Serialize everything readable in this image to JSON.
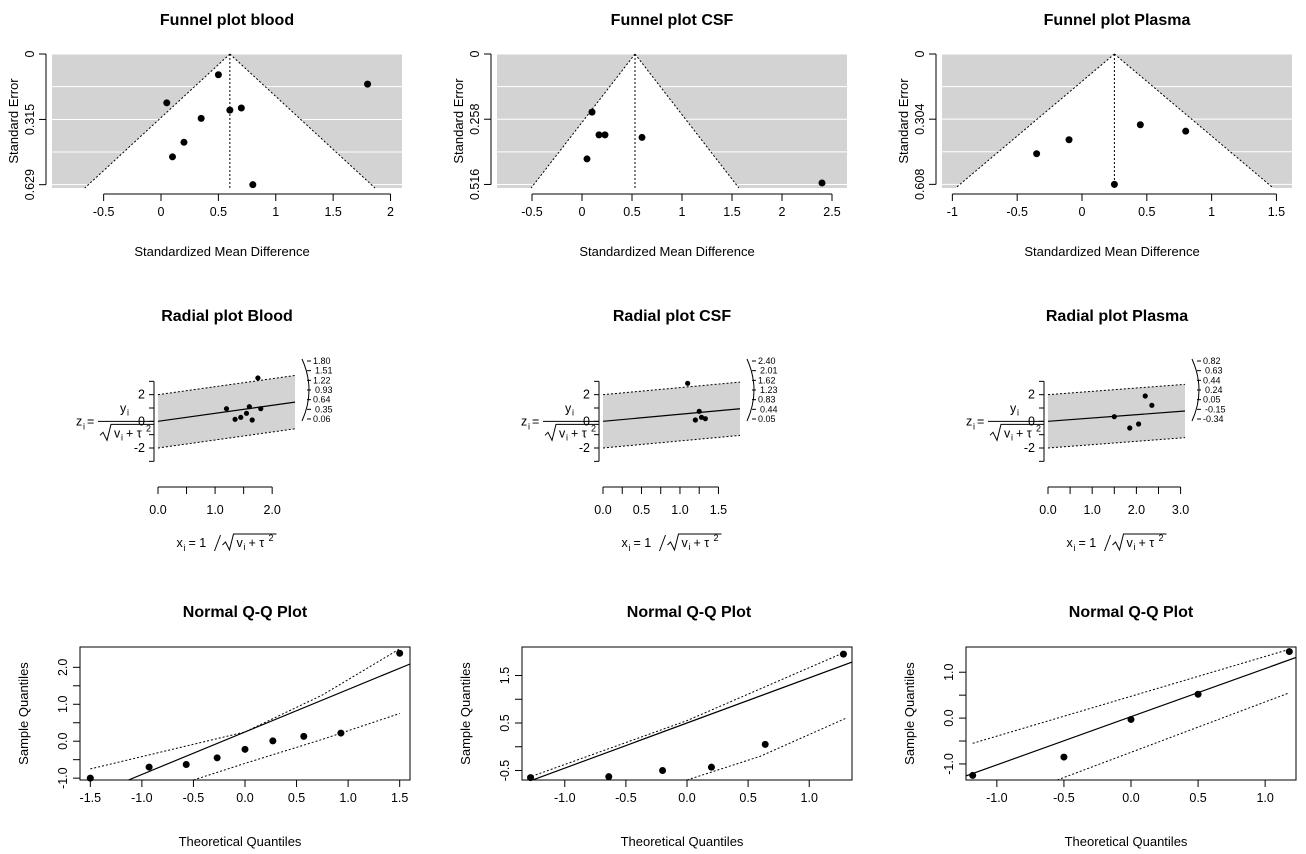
{
  "chart_data": [
    {
      "id": "funnel-blood",
      "type": "scatter",
      "kind": "funnel",
      "title": "Funnel plot blood",
      "xlabel": "Standardized Mean Difference",
      "ylabel": "Standard Error",
      "xlim": [
        -0.95,
        2.1
      ],
      "ylim": [
        0.645,
        0
      ],
      "xticks": [
        -0.5,
        0,
        0.5,
        1,
        1.5,
        2
      ],
      "xtick_labels": [
        "-0.5",
        "0",
        "0.5",
        "1",
        "1.5",
        "2"
      ],
      "yticks": [
        0,
        0.315,
        0.629
      ],
      "ytick_labels": [
        "0",
        "0.315",
        "0.629"
      ],
      "gridlines": [
        0,
        0.157,
        0.315,
        0.472,
        0.629
      ],
      "estimate": 0.6,
      "points": [
        {
          "x": 0.05,
          "y": 0.235
        },
        {
          "x": 0.5,
          "y": 0.1
        },
        {
          "x": 0.6,
          "y": 0.27
        },
        {
          "x": 0.7,
          "y": 0.26
        },
        {
          "x": 0.35,
          "y": 0.31
        },
        {
          "x": 0.2,
          "y": 0.425
        },
        {
          "x": 0.1,
          "y": 0.495
        },
        {
          "x": 0.8,
          "y": 0.629
        },
        {
          "x": 1.8,
          "y": 0.145
        }
      ]
    },
    {
      "id": "funnel-csf",
      "type": "scatter",
      "kind": "funnel",
      "title": "Funnel plot CSF",
      "xlabel": "Standardized Mean Difference",
      "ylabel": "Standard Error",
      "xlim": [
        -0.85,
        2.65
      ],
      "ylim": [
        0.53,
        0
      ],
      "xticks": [
        -0.5,
        0,
        0.5,
        1,
        1.5,
        2,
        2.5
      ],
      "xtick_labels": [
        "-0.5",
        "0",
        "0.5",
        "1",
        "1.5",
        "2",
        "2.5"
      ],
      "yticks": [
        0,
        0.258,
        0.516
      ],
      "ytick_labels": [
        "0",
        "0.258",
        "0.516"
      ],
      "gridlines": [
        0,
        0.129,
        0.258,
        0.387,
        0.516
      ],
      "estimate": 0.53,
      "points": [
        {
          "x": 0.1,
          "y": 0.23
        },
        {
          "x": 0.17,
          "y": 0.32
        },
        {
          "x": 0.23,
          "y": 0.32
        },
        {
          "x": 0.6,
          "y": 0.33
        },
        {
          "x": 0.05,
          "y": 0.415
        },
        {
          "x": 2.4,
          "y": 0.51
        }
      ]
    },
    {
      "id": "funnel-plasma",
      "type": "scatter",
      "kind": "funnel",
      "title": "Funnel plot Plasma",
      "xlabel": "Standardized Mean Difference",
      "ylabel": "Standard Error",
      "xlim": [
        -1.08,
        1.62
      ],
      "ylim": [
        0.625,
        0
      ],
      "xticks": [
        -1,
        -0.5,
        0,
        0.5,
        1,
        1.5
      ],
      "xtick_labels": [
        "-1",
        "-0.5",
        "0",
        "0.5",
        "1",
        "1.5"
      ],
      "yticks": [
        0,
        0.304,
        0.608
      ],
      "ytick_labels": [
        "0",
        "0.304",
        "0.608"
      ],
      "gridlines": [
        0,
        0.152,
        0.304,
        0.456,
        0.608
      ],
      "estimate": 0.25,
      "points": [
        {
          "x": -0.35,
          "y": 0.465
        },
        {
          "x": -0.1,
          "y": 0.4
        },
        {
          "x": 0.45,
          "y": 0.33
        },
        {
          "x": 0.8,
          "y": 0.36
        },
        {
          "x": 0.25,
          "y": 0.608
        }
      ]
    },
    {
      "id": "radial-blood",
      "type": "scatter",
      "kind": "radial",
      "title": "Radial plot Blood",
      "xlim": [
        0,
        2.4
      ],
      "ylim": [
        -3.8,
        4
      ],
      "xticks": [
        0,
        0.5,
        1,
        1.5,
        2
      ],
      "xtick_labels": [
        "0.0",
        "",
        "1.0",
        "",
        "2.0"
      ],
      "yticks": [
        -2,
        0,
        2
      ],
      "ytick_labels": [
        "-2",
        "0",
        "2"
      ],
      "slope": 0.6,
      "arc_labels": [
        "1.80",
        "1.51",
        "1.22",
        "0.93",
        "0.64",
        "0.35",
        "0.06"
      ],
      "points": [
        {
          "x": 1.2,
          "y": 0.95
        },
        {
          "x": 1.35,
          "y": 0.15
        },
        {
          "x": 1.45,
          "y": 0.3
        },
        {
          "x": 1.55,
          "y": 0.6
        },
        {
          "x": 1.6,
          "y": 1.1
        },
        {
          "x": 1.65,
          "y": 0.1
        },
        {
          "x": 1.75,
          "y": 3.25
        },
        {
          "x": 1.8,
          "y": 0.95
        }
      ]
    },
    {
      "id": "radial-csf",
      "type": "scatter",
      "kind": "radial",
      "title": "Radial plot CSF",
      "xlim": [
        0,
        1.78
      ],
      "ylim": [
        -3.8,
        4
      ],
      "xticks": [
        0,
        0.25,
        0.5,
        0.75,
        1,
        1.25,
        1.5
      ],
      "xtick_labels": [
        "0.0",
        "",
        "0.5",
        "",
        "1.0",
        "",
        "1.5"
      ],
      "yticks": [
        -2,
        0,
        2
      ],
      "ytick_labels": [
        "-2",
        "0",
        "2"
      ],
      "slope": 0.53,
      "arc_labels": [
        "2.40",
        "2.01",
        "1.62",
        "1.23",
        "0.83",
        "0.44",
        "0.05"
      ],
      "points": [
        {
          "x": 1.1,
          "y": 2.85
        },
        {
          "x": 1.2,
          "y": 0.1
        },
        {
          "x": 1.25,
          "y": 0.75
        },
        {
          "x": 1.28,
          "y": 0.3
        },
        {
          "x": 1.33,
          "y": 0.2
        }
      ]
    },
    {
      "id": "radial-plasma",
      "type": "scatter",
      "kind": "radial",
      "title": "Radial plot Plasma",
      "xlim": [
        0,
        3.1
      ],
      "ylim": [
        -3.8,
        4
      ],
      "xticks": [
        0,
        0.5,
        1,
        1.5,
        2,
        2.5,
        3
      ],
      "xtick_labels": [
        "0.0",
        "",
        "1.0",
        "",
        "2.0",
        "",
        "3.0"
      ],
      "yticks": [
        -2,
        0,
        2
      ],
      "ytick_labels": [
        "-2",
        "0",
        "2"
      ],
      "slope": 0.25,
      "arc_labels": [
        "0.82",
        "0.63",
        "0.44",
        "0.24",
        "0.05",
        "-0.15",
        "-0.34"
      ],
      "points": [
        {
          "x": 1.5,
          "y": 0.35
        },
        {
          "x": 1.85,
          "y": -0.5
        },
        {
          "x": 2.05,
          "y": -0.2
        },
        {
          "x": 2.2,
          "y": 1.9
        },
        {
          "x": 2.35,
          "y": 1.2
        }
      ]
    },
    {
      "id": "qq-blood",
      "type": "scatter",
      "kind": "qq",
      "title": "Normal Q-Q Plot",
      "xlabel": "Theoretical Quantiles",
      "ylabel": "Sample Quantiles",
      "xlim": [
        -1.6,
        1.6
      ],
      "ylim": [
        -1.05,
        2.55
      ],
      "xticks": [
        -1.5,
        -1,
        -0.5,
        0,
        0.5,
        1,
        1.5
      ],
      "xtick_labels": [
        "-1.5",
        "-1.0",
        "-0.5",
        "0.0",
        "0.5",
        "1.0",
        "1.5"
      ],
      "yticks": [
        -1,
        -0.5,
        0,
        0.5,
        1,
        1.5,
        2
      ],
      "ytick_labels": [
        "-1.0",
        "",
        "0.0",
        "",
        "1.0",
        "",
        "2.0"
      ],
      "ref_line": {
        "intercept": 0.25,
        "slope": 1.15
      },
      "upper_band": [
        [
          -1.5,
          -0.75
        ],
        [
          -0.75,
          -0.25
        ],
        [
          0,
          0.25
        ],
        [
          0.75,
          1.25
        ],
        [
          1.5,
          2.5
        ]
      ],
      "lower_band": [
        [
          -0.5,
          -1.05
        ],
        [
          0,
          -0.6
        ],
        [
          0.75,
          0.05
        ],
        [
          1.5,
          0.75
        ]
      ],
      "points": [
        {
          "x": -1.5,
          "y": -1.0
        },
        {
          "x": -0.93,
          "y": -0.7
        },
        {
          "x": -0.57,
          "y": -0.63
        },
        {
          "x": -0.27,
          "y": -0.45
        },
        {
          "x": 0.0,
          "y": -0.22
        },
        {
          "x": 0.27,
          "y": 0.01
        },
        {
          "x": 0.57,
          "y": 0.13
        },
        {
          "x": 0.93,
          "y": 0.22
        },
        {
          "x": 1.5,
          "y": 2.38
        }
      ]
    },
    {
      "id": "qq-csf",
      "type": "scatter",
      "kind": "qq",
      "title": "Normal Q-Q Plot",
      "xlabel": "Theoretical Quantiles",
      "ylabel": "Sample Quantiles",
      "xlim": [
        -1.35,
        1.35
      ],
      "ylim": [
        -0.7,
        2.1
      ],
      "xticks": [
        -1,
        -0.5,
        0,
        0.5,
        1
      ],
      "xtick_labels": [
        "-1.0",
        "-0.5",
        "0.0",
        "0.5",
        "1.0"
      ],
      "yticks": [
        -0.5,
        0,
        0.5,
        1,
        1.5
      ],
      "ytick_labels": [
        "-0.5",
        "",
        "0.5",
        "",
        "1.5"
      ],
      "ref_line": {
        "intercept": 0.5,
        "slope": 0.95
      },
      "upper_band": [
        [
          -1.3,
          -0.65
        ],
        [
          0,
          0.55
        ],
        [
          1.3,
          2.0
        ]
      ],
      "lower_band": [
        [
          0,
          -0.7
        ],
        [
          0.6,
          -0.2
        ],
        [
          1.3,
          0.6
        ]
      ],
      "points": [
        {
          "x": -1.28,
          "y": -0.65
        },
        {
          "x": -0.64,
          "y": -0.63
        },
        {
          "x": -0.2,
          "y": -0.5
        },
        {
          "x": 0.2,
          "y": -0.43
        },
        {
          "x": 0.64,
          "y": 0.05
        },
        {
          "x": 1.28,
          "y": 1.95
        }
      ]
    },
    {
      "id": "qq-plasma",
      "type": "scatter",
      "kind": "qq",
      "title": "Normal Q-Q Plot",
      "xlabel": "Theoretical Quantiles",
      "ylabel": "Sample Quantiles",
      "xlim": [
        -1.23,
        1.23
      ],
      "ylim": [
        -1.35,
        1.55
      ],
      "xticks": [
        -1,
        -0.5,
        0,
        0.5,
        1
      ],
      "xtick_labels": [
        "-1.0",
        "-0.5",
        "0.0",
        "0.5",
        "1.0"
      ],
      "yticks": [
        -1,
        -0.5,
        0,
        0.5,
        1
      ],
      "ytick_labels": [
        "-1.0",
        "",
        "0.0",
        "",
        "1.0"
      ],
      "ref_line": {
        "intercept": 0.03,
        "slope": 1.05
      },
      "upper_band": [
        [
          -1.18,
          -0.55
        ],
        [
          1.18,
          1.5
        ]
      ],
      "lower_band": [
        [
          -0.55,
          -1.35
        ],
        [
          1.18,
          0.55
        ]
      ],
      "points": [
        {
          "x": -1.18,
          "y": -1.25
        },
        {
          "x": -0.5,
          "y": -0.85
        },
        {
          "x": 0.0,
          "y": -0.03
        },
        {
          "x": 0.5,
          "y": 0.52
        },
        {
          "x": 1.18,
          "y": 1.45
        }
      ]
    }
  ]
}
